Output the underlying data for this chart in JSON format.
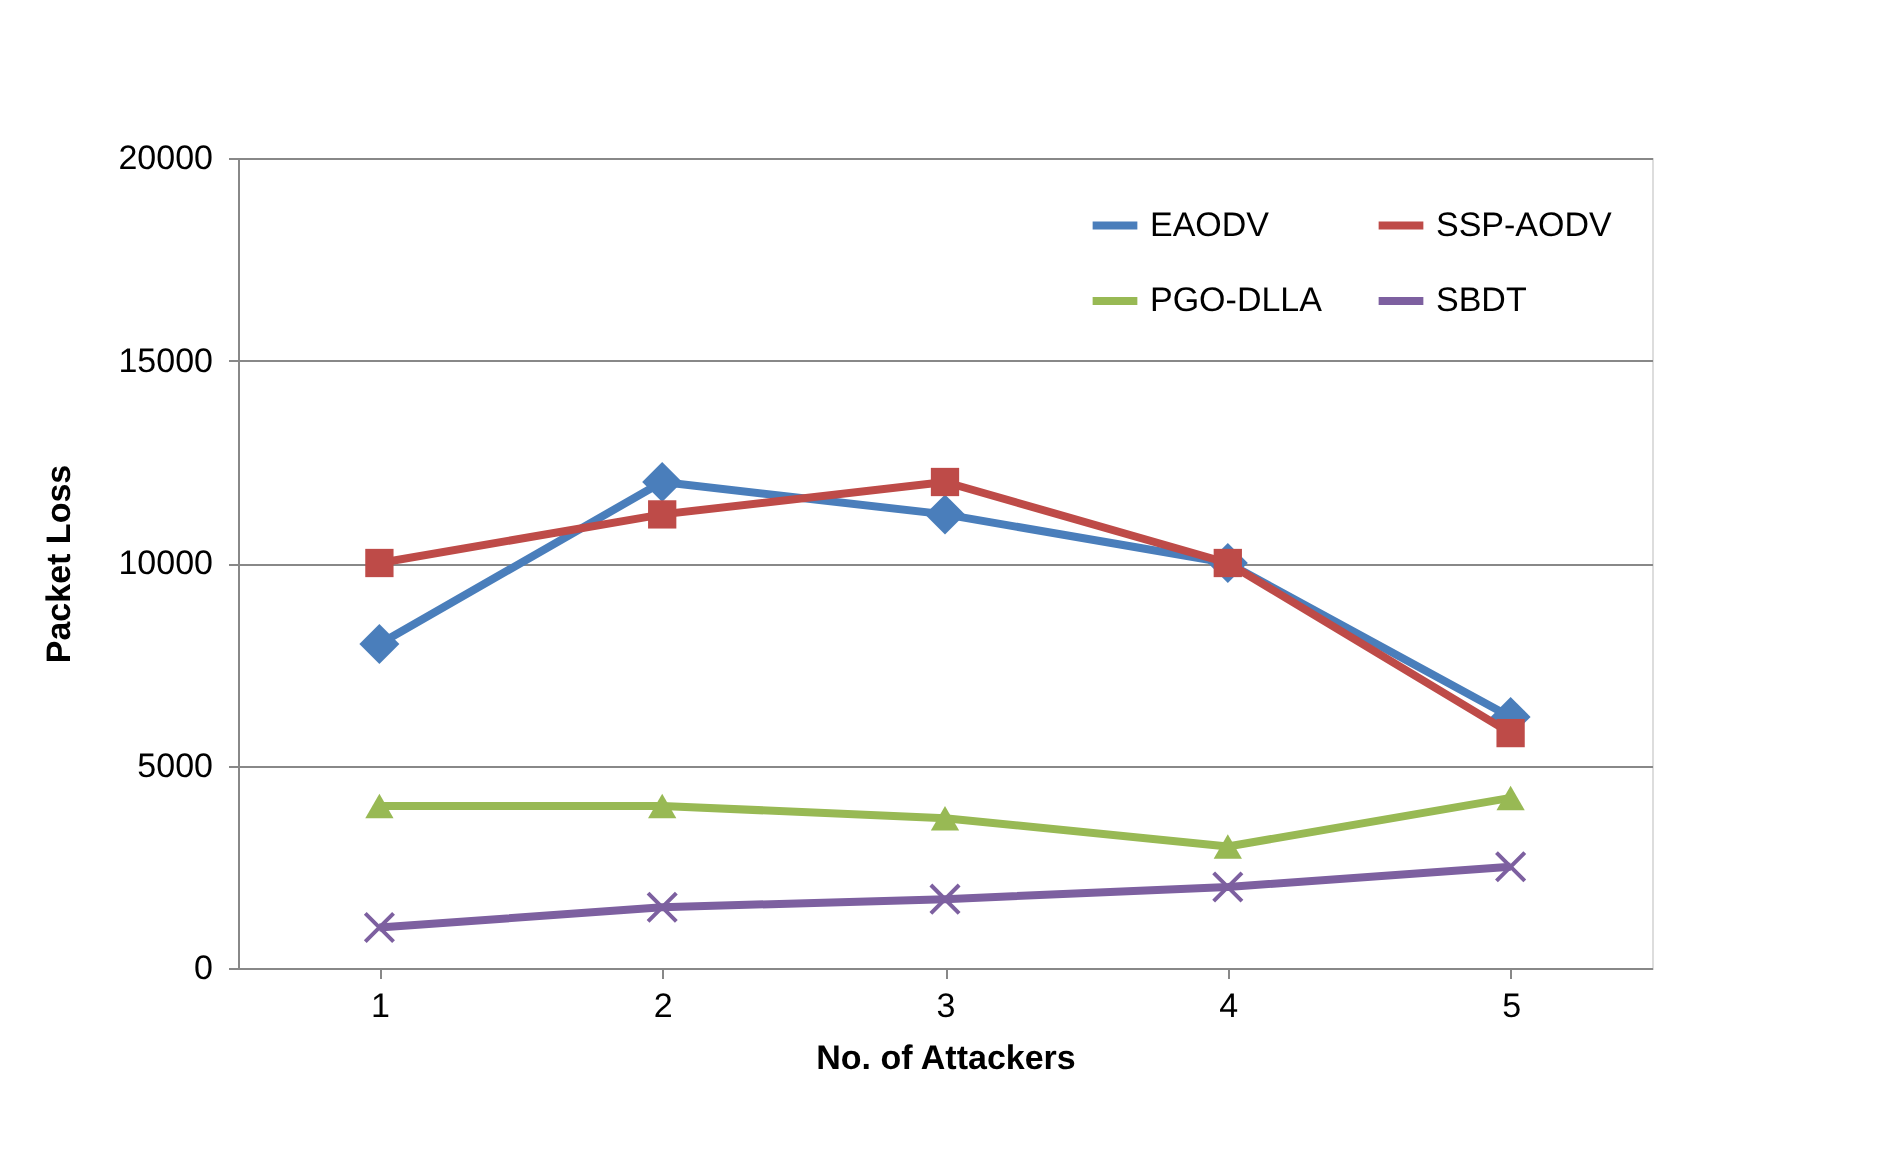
{
  "chart_data": {
    "type": "line",
    "xlabel": "No. of Attackers",
    "ylabel": "Packet Loss",
    "categories": [
      "1",
      "2",
      "3",
      "4",
      "5"
    ],
    "series": [
      {
        "name": "EAODV",
        "color": "#4a7ebb",
        "marker": "diamond",
        "values": [
          8000,
          12000,
          11200,
          10000,
          6200
        ]
      },
      {
        "name": "SSP-AODV",
        "color": "#be4b48",
        "marker": "square",
        "values": [
          10000,
          11200,
          12000,
          10000,
          5800
        ]
      },
      {
        "name": "PGO-DLLA",
        "color": "#98b954",
        "marker": "triangle",
        "values": [
          4000,
          4000,
          3700,
          3000,
          4200
        ]
      },
      {
        "name": "SBDT",
        "color": "#7d60a0",
        "marker": "cross",
        "values": [
          1000,
          1500,
          1700,
          2000,
          2500
        ]
      }
    ],
    "ylim": [
      0,
      20000
    ],
    "yticks": [
      0,
      5000,
      10000,
      15000,
      20000
    ],
    "grid": "y",
    "legend": "top right",
    "line_style": "solid"
  }
}
